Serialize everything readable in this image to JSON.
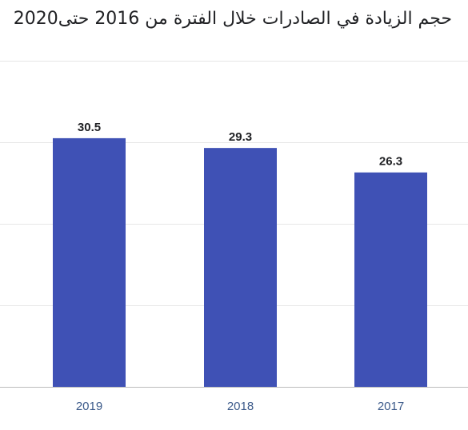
{
  "chart_data": {
    "type": "bar",
    "title": "حجم الزيادة في الصادرات خلال الفترة من 2016 حتى2020",
    "categories": [
      "2017",
      "2018",
      "2019"
    ],
    "values": [
      26.3,
      29.3,
      30.5
    ],
    "category_order_rtl": true,
    "ylim": [
      0,
      40
    ],
    "grid": true,
    "bar_color": "#3f51b5",
    "show_data_labels": true
  }
}
